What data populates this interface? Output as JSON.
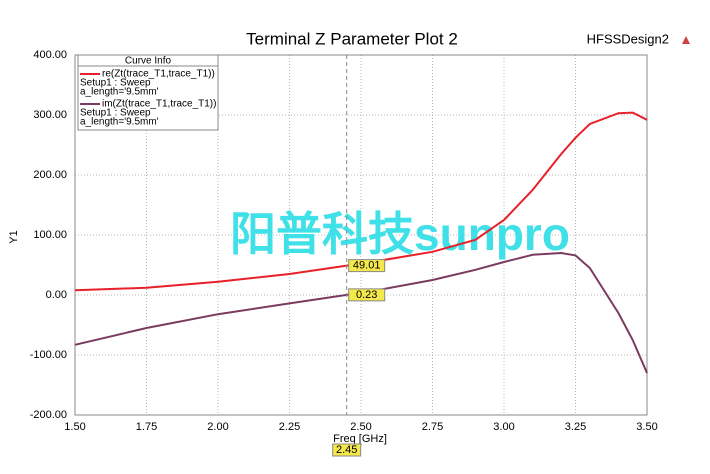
{
  "chart_data": {
    "type": "line",
    "title": "Terminal Z Parameter Plot 2",
    "design": "HFSSDesign2",
    "watermark": "阳普科技sunpro",
    "x_label": "Freq [GHz]",
    "y_label": "Y1",
    "legend_title": "Curve Info",
    "x": [
      1.5,
      1.75,
      2.0,
      2.25,
      2.45,
      2.5,
      2.75,
      2.9,
      3.0,
      3.1,
      3.2,
      3.25,
      3.3,
      3.4,
      3.45,
      3.5
    ],
    "series": [
      {
        "name": "re(Zt(trace_T1,trace_T1))",
        "setup": "Setup1 : Sweep",
        "variation": "a_length='9.5mm'",
        "color": "#e8202a",
        "values": [
          8,
          12,
          22,
          35,
          49.01,
          52,
          72,
          92,
          125,
          175,
          235,
          262,
          285,
          303,
          304,
          292
        ]
      },
      {
        "name": "im(Zt(trace_T1,trace_T1))",
        "setup": "Setup1 : Sweep",
        "variation": "a_length='9.5mm'",
        "color": "#7a3b5f",
        "values": [
          -83,
          -55,
          -32,
          -14,
          0.23,
          3,
          25,
          42,
          55,
          67,
          70,
          66,
          45,
          -30,
          -75,
          -130
        ]
      }
    ],
    "cursor_index": 4,
    "xlim": [
      1.5,
      3.5
    ],
    "ylim": [
      -200,
      400
    ],
    "xticks": [
      {
        "value": 1.5,
        "label": "1.50"
      },
      {
        "value": 1.75,
        "label": "1.75"
      },
      {
        "value": 2.0,
        "label": "2.00"
      },
      {
        "value": 2.25,
        "label": "2.25"
      },
      {
        "value": 2.5,
        "label": "2.50"
      },
      {
        "value": 2.75,
        "label": "2.75"
      },
      {
        "value": 3.0,
        "label": "3.00"
      },
      {
        "value": 3.25,
        "label": "3.25"
      },
      {
        "value": 3.5,
        "label": "3.50"
      }
    ],
    "yticks": [
      {
        "value": -200,
        "label": "-200.00"
      },
      {
        "value": -100,
        "label": "-100.00"
      },
      {
        "value": 0,
        "label": "0.00"
      },
      {
        "value": 100,
        "label": "100.00"
      },
      {
        "value": 200,
        "label": "200.00"
      },
      {
        "value": 300,
        "label": "300.00"
      },
      {
        "value": 400,
        "label": "400.00"
      }
    ],
    "grid": true
  }
}
